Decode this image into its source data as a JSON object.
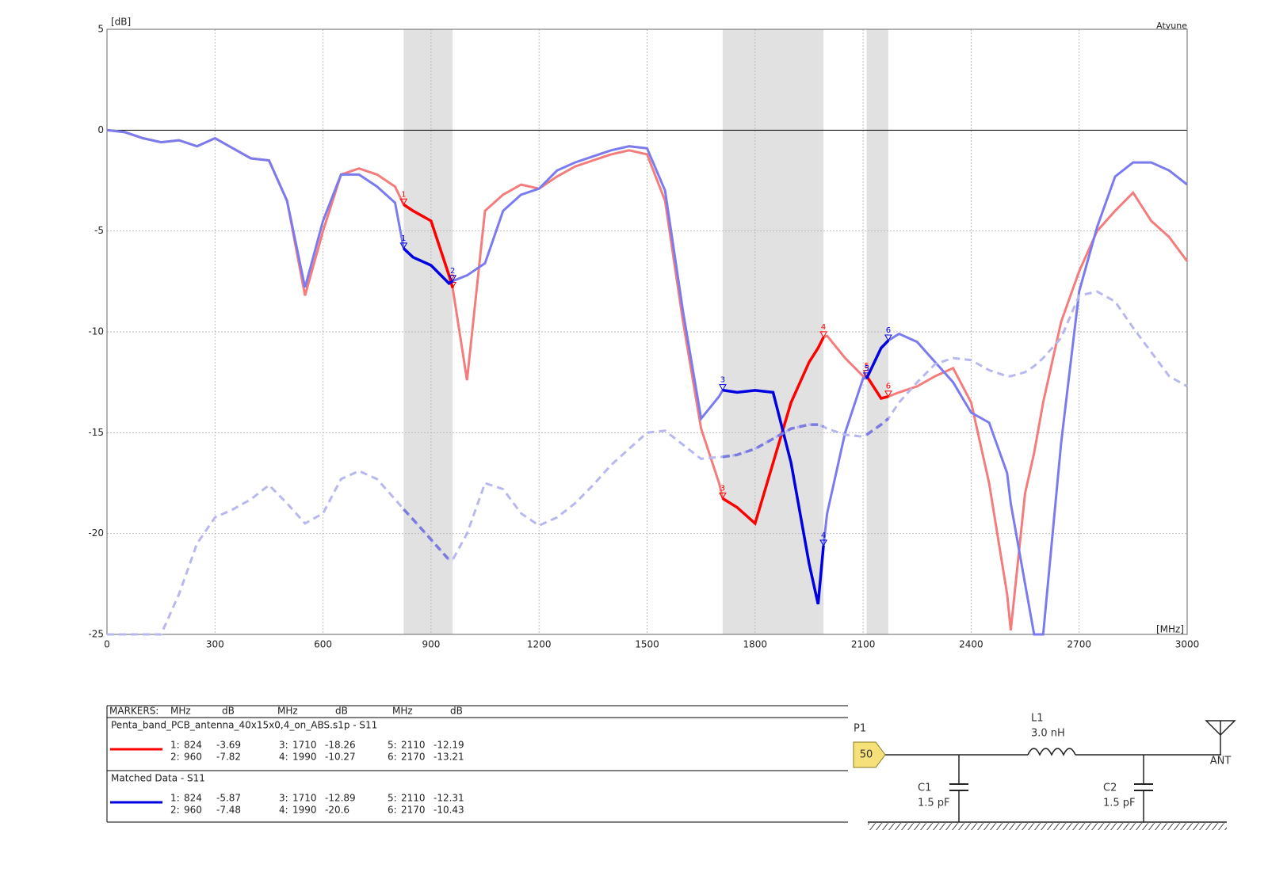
{
  "chart_data": {
    "type": "line",
    "y_unit": "[dB]",
    "x_unit": "[MHz]",
    "corner_label": "Atyune",
    "xlim": [
      0,
      3000
    ],
    "xticks": [
      0,
      300,
      600,
      900,
      1200,
      1500,
      1800,
      2100,
      2400,
      2700,
      3000
    ],
    "ylim": [
      -25,
      5
    ],
    "yticks": [
      5,
      0,
      -5,
      -10,
      -15,
      -20,
      -25
    ],
    "grid": true,
    "zero_line": true,
    "bands": [
      [
        824,
        960
      ],
      [
        1710,
        1990
      ],
      [
        2110,
        2170
      ]
    ],
    "x": [
      0,
      50,
      100,
      150,
      200,
      250,
      300,
      350,
      400,
      450,
      500,
      550,
      600,
      650,
      700,
      750,
      800,
      824,
      850,
      900,
      950,
      960,
      1000,
      1050,
      1100,
      1150,
      1200,
      1250,
      1300,
      1350,
      1400,
      1450,
      1500,
      1550,
      1600,
      1650,
      1700,
      1710,
      1750,
      1800,
      1850,
      1900,
      1950,
      1975,
      1990,
      2000,
      2050,
      2100,
      2110,
      2150,
      2170,
      2200,
      2250,
      2300,
      2350,
      2400,
      2450,
      2500,
      2510,
      2550,
      2575,
      2600,
      2650,
      2700,
      2750,
      2800,
      2850,
      2900,
      2950,
      3000
    ],
    "series": [
      {
        "name": "Penta_band_PCB_antenna_40x15x0,4_on_ABS.s1p - S11",
        "color": "#f47c7c",
        "band_color": "#ff0000",
        "values": [
          0,
          -0.1,
          -0.4,
          -0.6,
          -0.5,
          -0.8,
          -0.4,
          -0.9,
          -1.4,
          -1.5,
          -3.5,
          -8.2,
          -5.0,
          -2.2,
          -1.9,
          -2.2,
          -2.8,
          -3.69,
          -4.0,
          -4.5,
          -7.2,
          -7.82,
          -12.4,
          -4.0,
          -3.2,
          -2.7,
          -2.9,
          -2.3,
          -1.8,
          -1.5,
          -1.2,
          -1.0,
          -1.2,
          -3.5,
          -9.5,
          -14.8,
          -17.5,
          -18.26,
          -18.7,
          -19.5,
          -16.5,
          -13.5,
          -11.5,
          -10.8,
          -10.27,
          -10.2,
          -11.3,
          -12.2,
          -12.19,
          -13.3,
          -13.21,
          -13.0,
          -12.7,
          -12.2,
          -11.8,
          -13.5,
          -17.5,
          -23.0,
          -24.8,
          -18.0,
          -16.0,
          -13.5,
          -9.5,
          -7.0,
          -5.0,
          -4.0,
          -3.1,
          -4.5,
          -5.3,
          -6.5
        ],
        "marker_values": [
          -3.69,
          -7.82,
          -18.26,
          -10.27,
          -12.19,
          -13.21
        ]
      },
      {
        "name": "Matched Data - S11",
        "color": "#7b7bf0",
        "band_color": "#0000e0",
        "values": [
          0,
          -0.1,
          -0.4,
          -0.6,
          -0.5,
          -0.8,
          -0.4,
          -0.9,
          -1.4,
          -1.5,
          -3.5,
          -7.8,
          -4.5,
          -2.2,
          -2.2,
          -2.8,
          -3.6,
          -5.87,
          -6.3,
          -6.7,
          -7.6,
          -7.48,
          -7.2,
          -6.6,
          -4.0,
          -3.2,
          -2.9,
          -2.0,
          -1.6,
          -1.3,
          -1.0,
          -0.8,
          -0.9,
          -3.0,
          -9.0,
          -14.3,
          -13.2,
          -12.89,
          -13.0,
          -12.9,
          -13.0,
          -16.5,
          -21.5,
          -23.5,
          -20.6,
          -19.0,
          -15.0,
          -12.3,
          -12.31,
          -10.8,
          -10.43,
          -10.1,
          -10.5,
          -11.5,
          -12.5,
          -14.0,
          -14.5,
          -17.0,
          -18.5,
          -22.5,
          -25,
          -25,
          -15.5,
          -8.0,
          -4.8,
          -2.3,
          -1.6,
          -1.6,
          -2.0,
          -2.7
        ],
        "marker_values": [
          -5.87,
          -7.48,
          -12.89,
          -20.6,
          -12.31,
          -10.43
        ]
      },
      {
        "color": "#b8b8f0",
        "band_color": "#7a7ae0",
        "dashed": true,
        "values": [
          -25,
          -25,
          -25,
          -25,
          -23,
          -20.5,
          -19.2,
          -18.8,
          -18.3,
          -17.6,
          -18.5,
          -19.5,
          -19.0,
          -17.3,
          -16.9,
          -17.3,
          -18.3,
          -18.8,
          -19.3,
          -20.3,
          -21.3,
          -21.3,
          -20.0,
          -17.5,
          -17.8,
          -19.0,
          -19.6,
          -19.2,
          -18.5,
          -17.6,
          -16.6,
          -15.8,
          -15.0,
          -14.9,
          -15.6,
          -16.3,
          -16.2,
          -16.2,
          -16.1,
          -15.8,
          -15.3,
          -14.8,
          -14.6,
          -14.6,
          -14.7,
          -14.8,
          -15.1,
          -15.2,
          -15.1,
          -14.6,
          -14.3,
          -13.5,
          -12.5,
          -11.6,
          -11.3,
          -11.4,
          -11.9,
          -12.2,
          -12.2,
          -12.0,
          -11.7,
          -11.3,
          -10.3,
          -8.2,
          -8.0,
          -8.5,
          -9.8,
          -11.0,
          -12.2,
          -12.7
        ]
      }
    ],
    "markers": {
      "header": [
        "MARKERS:",
        "MHz",
        "dB",
        "MHz",
        "dB",
        "MHz",
        "dB"
      ],
      "ids": [
        1,
        2,
        3,
        4,
        5,
        6
      ],
      "labels": [
        "1:",
        "2:",
        "3:",
        "4:",
        "5:",
        "6:"
      ],
      "freqs": [
        824,
        960,
        1710,
        1990,
        2110,
        2170
      ]
    }
  },
  "schematic": {
    "port": "P1",
    "impedance": "50",
    "inductor": {
      "name": "L1",
      "value": "3.0 nH"
    },
    "capacitors": [
      {
        "name": "C1",
        "value": "1.5 pF"
      },
      {
        "name": "C2",
        "value": "1.5 pF"
      }
    ],
    "antenna": "ANT"
  }
}
